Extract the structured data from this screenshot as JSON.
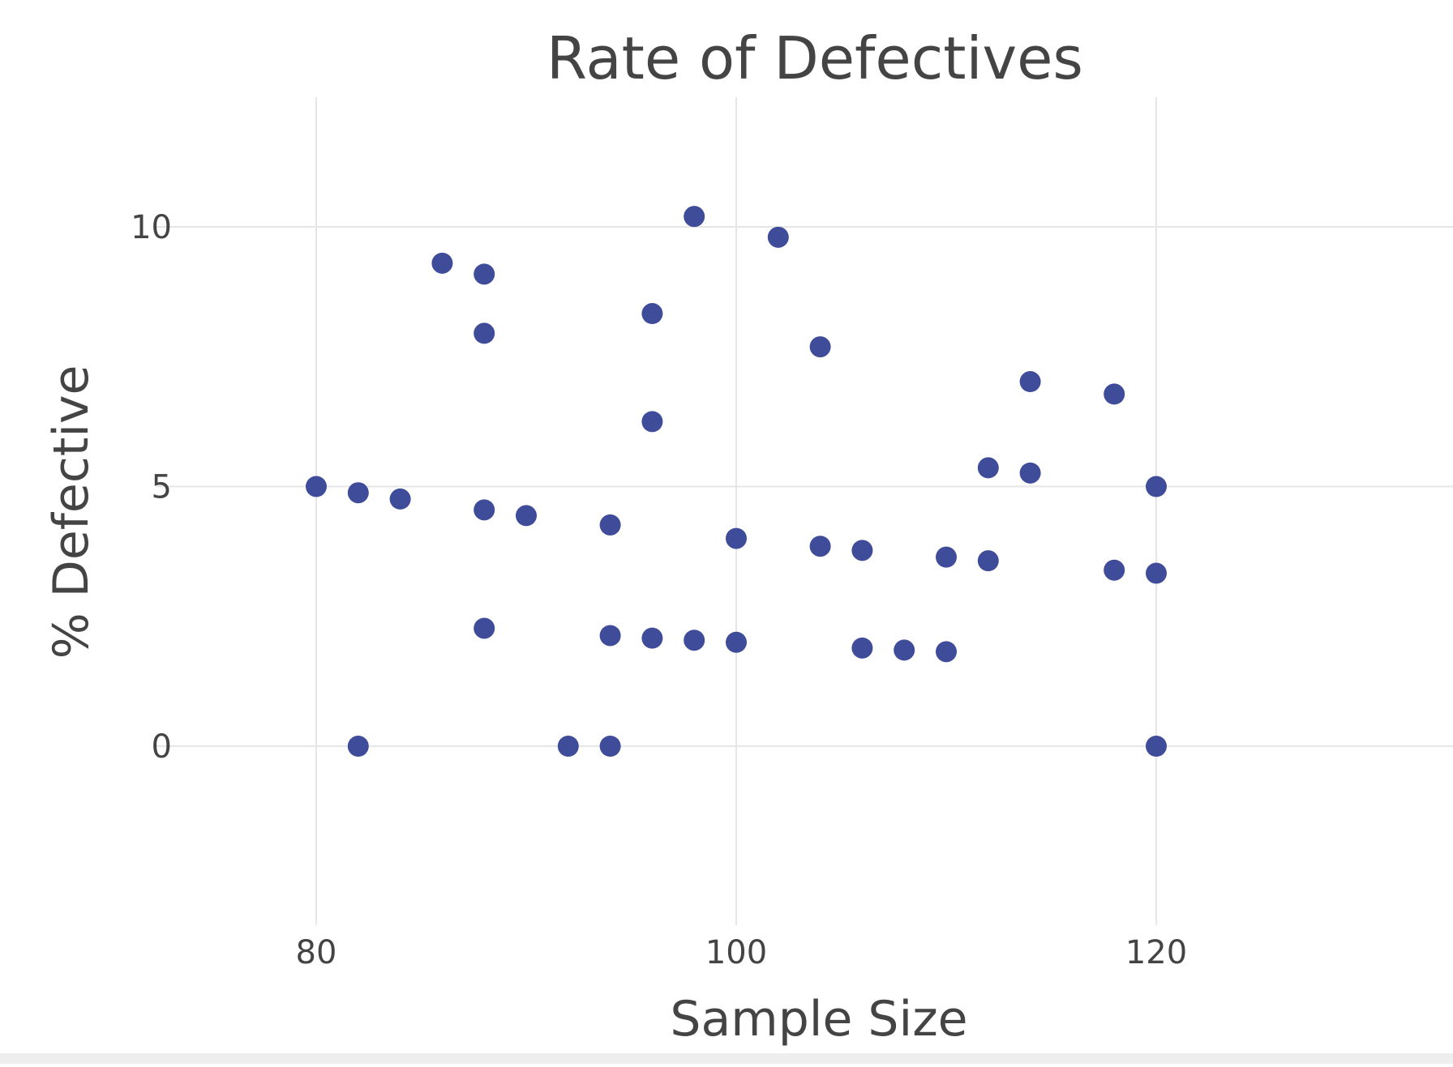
{
  "chart_data": {
    "type": "scatter",
    "title": "Rate of Defectives",
    "xlabel": "Sample Size",
    "ylabel": "% Defective",
    "xlim": [
      70,
      138
    ],
    "ylim": [
      -3.3,
      12.5
    ],
    "x_ticks": [
      80,
      100,
      120
    ],
    "y_ticks": [
      0,
      5,
      10
    ],
    "x_tick_labels": [
      "80",
      "100",
      "120"
    ],
    "y_tick_labels": [
      "0",
      "5",
      "10"
    ],
    "grid": true,
    "legend": false,
    "marker_color": "#3f4c9a",
    "series": [
      {
        "points": [
          {
            "x": 80,
            "y": 5.0
          },
          {
            "x": 82,
            "y": 4.88
          },
          {
            "x": 82,
            "y": 0.0
          },
          {
            "x": 84,
            "y": 4.76
          },
          {
            "x": 86,
            "y": 9.3
          },
          {
            "x": 88,
            "y": 9.09
          },
          {
            "x": 88,
            "y": 7.95
          },
          {
            "x": 88,
            "y": 4.55
          },
          {
            "x": 88,
            "y": 2.27
          },
          {
            "x": 90,
            "y": 4.44
          },
          {
            "x": 92,
            "y": 0.0
          },
          {
            "x": 94,
            "y": 4.26
          },
          {
            "x": 94,
            "y": 2.13
          },
          {
            "x": 94,
            "y": 0.0
          },
          {
            "x": 96,
            "y": 8.33
          },
          {
            "x": 96,
            "y": 6.25
          },
          {
            "x": 96,
            "y": 2.08
          },
          {
            "x": 98,
            "y": 10.2
          },
          {
            "x": 98,
            "y": 2.04
          },
          {
            "x": 100,
            "y": 4.0
          },
          {
            "x": 100,
            "y": 2.0
          },
          {
            "x": 102,
            "y": 9.8
          },
          {
            "x": 104,
            "y": 7.69
          },
          {
            "x": 104,
            "y": 3.85
          },
          {
            "x": 106,
            "y": 3.77
          },
          {
            "x": 106,
            "y": 1.89
          },
          {
            "x": 108,
            "y": 1.85
          },
          {
            "x": 110,
            "y": 3.64
          },
          {
            "x": 110,
            "y": 1.82
          },
          {
            "x": 112,
            "y": 5.36
          },
          {
            "x": 112,
            "y": 3.57
          },
          {
            "x": 114,
            "y": 7.02
          },
          {
            "x": 114,
            "y": 5.26
          },
          {
            "x": 118,
            "y": 6.78
          },
          {
            "x": 118,
            "y": 3.39
          },
          {
            "x": 120,
            "y": 5.0
          },
          {
            "x": 120,
            "y": 3.33
          },
          {
            "x": 120,
            "y": 0.0
          }
        ]
      }
    ]
  }
}
